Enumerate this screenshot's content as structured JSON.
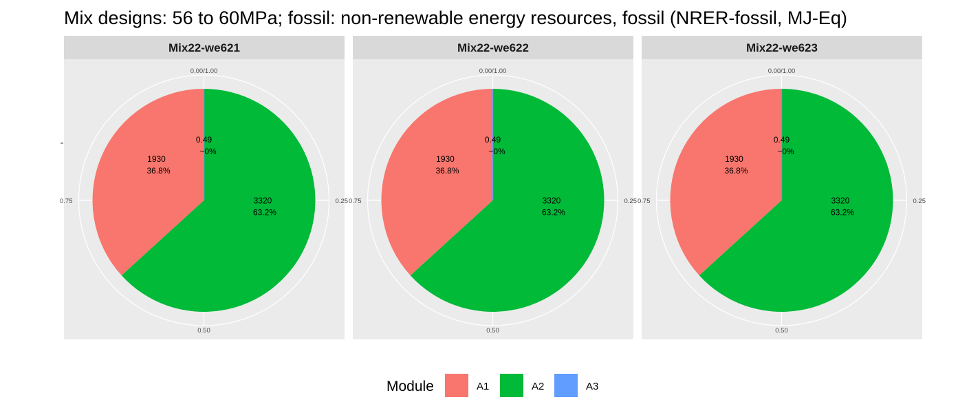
{
  "title": "Mix designs: 56 to 60MPa; fossil: non-renewable energy resources, fossil (NRER-fossil, MJ-Eq)",
  "colors": {
    "A1": "#F8766D",
    "A2": "#00BA38",
    "A3": "#619CFF",
    "panel_bg": "#EBEBEB",
    "strip_bg": "#D9D9D9",
    "grid": "#FFFFFF"
  },
  "legend": {
    "title": "Module",
    "items": [
      {
        "key": "A1",
        "label": "A1"
      },
      {
        "key": "A2",
        "label": "A2"
      },
      {
        "key": "A3",
        "label": "A3"
      }
    ]
  },
  "chart_data": {
    "type": "pie",
    "angular_ticks": [
      "0.00/1.00",
      "0.25",
      "0.50",
      "0.75"
    ],
    "panels": [
      {
        "name": "Mix22-we621",
        "slices": [
          {
            "module": "A3",
            "value": 0.49,
            "label": "0.49",
            "pct": "~0%"
          },
          {
            "module": "A2",
            "value": 3320,
            "label": "3320",
            "pct": "63.2%"
          },
          {
            "module": "A1",
            "value": 1930,
            "label": "1930",
            "pct": "36.8%"
          }
        ]
      },
      {
        "name": "Mix22-we622",
        "slices": [
          {
            "module": "A3",
            "value": 0.49,
            "label": "0.49",
            "pct": "~0%"
          },
          {
            "module": "A2",
            "value": 3320,
            "label": "3320",
            "pct": "63.2%"
          },
          {
            "module": "A1",
            "value": 1930,
            "label": "1930",
            "pct": "36.8%"
          }
        ]
      },
      {
        "name": "Mix22-we623",
        "slices": [
          {
            "module": "A3",
            "value": 0.49,
            "label": "0.49",
            "pct": "~0%"
          },
          {
            "module": "A2",
            "value": 3320,
            "label": "3320",
            "pct": "63.2%"
          },
          {
            "module": "A1",
            "value": 1930,
            "label": "1930",
            "pct": "36.8%"
          }
        ]
      }
    ]
  }
}
